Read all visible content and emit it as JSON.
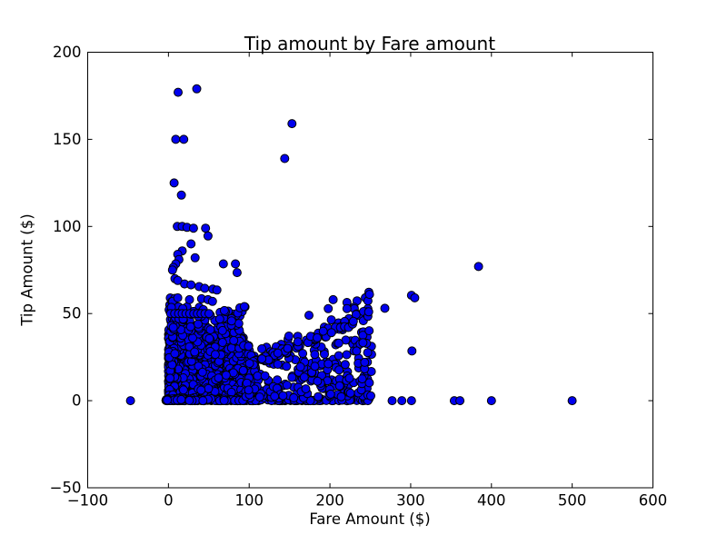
{
  "chart_data": {
    "type": "scatter",
    "title": "Tip amount by Fare amount",
    "xlabel": "Fare Amount ($)",
    "ylabel": "Tip Amount ($)",
    "xlim": [
      -100,
      600
    ],
    "ylim": [
      -50,
      200
    ],
    "xticks": [
      -100,
      0,
      100,
      200,
      300,
      400,
      500,
      600
    ],
    "yticks": [
      -50,
      0,
      50,
      100,
      150,
      200
    ],
    "xtick_labels": [
      "−100",
      "0",
      "100",
      "200",
      "300",
      "400",
      "500",
      "600"
    ],
    "ytick_labels": [
      "−50",
      "0",
      "50",
      "100",
      "150",
      "200"
    ],
    "grid": false,
    "legend": null,
    "background_color": "#ffffff",
    "axes_color": "#000000",
    "marker": {
      "shape": "circle",
      "fill": "#0000ee",
      "edge": "#000000",
      "radius_px": 4.5,
      "edge_width": 1
    },
    "notable_points": [
      [
        -47,
        0
      ],
      [
        12,
        177
      ],
      [
        35,
        179
      ],
      [
        9,
        150
      ],
      [
        19,
        150
      ],
      [
        153,
        159
      ],
      [
        144,
        139
      ],
      [
        7,
        125
      ],
      [
        16,
        118
      ],
      [
        11,
        100
      ],
      [
        17,
        100
      ],
      [
        23,
        99.5
      ],
      [
        31,
        99
      ],
      [
        46,
        99
      ],
      [
        49,
        94.5
      ],
      [
        28,
        90
      ],
      [
        17,
        86
      ],
      [
        11.5,
        84
      ],
      [
        13,
        81
      ],
      [
        33,
        82
      ],
      [
        9,
        78.5
      ],
      [
        6,
        76.5
      ],
      [
        5,
        75
      ],
      [
        68,
        78.5
      ],
      [
        83,
        78.5
      ],
      [
        85,
        73.5
      ],
      [
        8,
        70
      ],
      [
        11.5,
        69
      ],
      [
        20,
        67
      ],
      [
        28,
        66.5
      ],
      [
        38,
        65.5
      ],
      [
        45,
        64.5
      ],
      [
        55,
        64
      ],
      [
        60,
        63.5
      ],
      [
        11.5,
        59
      ],
      [
        26,
        58
      ],
      [
        41,
        58.5
      ],
      [
        49,
        58
      ],
      [
        54.5,
        57
      ],
      [
        94,
        54
      ],
      [
        2.7,
        50
      ],
      [
        7.7,
        50
      ],
      [
        12.5,
        50
      ],
      [
        17,
        50
      ],
      [
        21.6,
        50
      ],
      [
        26.4,
        50
      ],
      [
        31.3,
        50
      ],
      [
        35.8,
        50
      ],
      [
        40.3,
        50
      ],
      [
        45.2,
        50
      ],
      [
        50.2,
        50
      ],
      [
        174,
        49
      ],
      [
        204,
        58
      ],
      [
        249,
        61
      ],
      [
        248,
        51
      ],
      [
        268,
        53
      ],
      [
        301,
        60.5
      ],
      [
        305,
        59
      ],
      [
        301.5,
        28.5
      ],
      [
        213,
        42
      ],
      [
        218,
        42.5
      ],
      [
        223,
        42
      ],
      [
        228,
        44
      ],
      [
        229,
        45.5
      ],
      [
        211,
        33
      ],
      [
        233,
        28.5
      ],
      [
        235,
        21.5
      ],
      [
        243,
        22
      ],
      [
        240,
        12.5
      ],
      [
        212,
        8.5
      ],
      [
        277,
        0
      ],
      [
        289,
        0
      ],
      [
        301,
        0
      ],
      [
        354,
        0
      ],
      [
        361,
        0
      ],
      [
        400,
        0
      ],
      [
        500,
        0
      ],
      [
        384,
        77
      ]
    ],
    "dense_cluster": {
      "description": "Very dense overlapping cloud of trips: fares mostly $0-$120 with tips $0-$30 (nearly solid), a continuous tip=$0 row from fare 0 to 250, a vertical strip of tips up to ~$60 at fares near $0, a visible ~20% tip ray extending to fare 250, and a sparser wedge of fractional tips for fares $95-$250.",
      "seed": 7,
      "components": [
        {
          "name": "core-blob",
          "n": 1150,
          "x": {
            "dist": "pow",
            "min": 0,
            "max": 108,
            "exp": 1.15
          },
          "y": {
            "dist": "pow",
            "min": 0,
            "max": 27,
            "exp": 1.4
          }
        },
        {
          "name": "blob-upper-fade",
          "n": 210,
          "x": {
            "dist": "pow",
            "min": 0,
            "max": 102,
            "exp": 1.3
          },
          "y": {
            "dist": "uniform",
            "min": 26,
            "max": 40
          }
        },
        {
          "name": "left-column",
          "n": 110,
          "x": {
            "dist": "uniform",
            "min": 0,
            "max": 8
          },
          "y": {
            "dist": "pow",
            "min": 0,
            "max": 62,
            "exp": 1.25
          }
        },
        {
          "name": "zero-tip-row",
          "n": 240,
          "x": {
            "dist": "pow",
            "min": -3,
            "max": 252,
            "exp": 1.4
          },
          "y": {
            "dist": "pow",
            "min": 0,
            "max": 1.2,
            "exp": 2.2
          }
        },
        {
          "name": "tip-fraction-wedge",
          "n": 250,
          "x": {
            "dist": "uniform",
            "min": 95,
            "max": 252
          },
          "yfrac": {
            "dist": "pow",
            "min": 0.01,
            "max": 0.27,
            "exp": 1.5
          }
        },
        {
          "name": "twenty-pct-ray",
          "n": 80,
          "x": {
            "dist": "uniform",
            "min": 55,
            "max": 252
          },
          "yfrac": {
            "dist": "uniform",
            "min": 0.185,
            "max": 0.215
          }
        },
        {
          "name": "above-blob-sparse",
          "n": 80,
          "x": {
            "dist": "pow",
            "min": 2,
            "max": 95,
            "exp": 1.1
          },
          "y": {
            "dist": "uniform",
            "min": 40,
            "max": 54
          }
        }
      ]
    }
  }
}
